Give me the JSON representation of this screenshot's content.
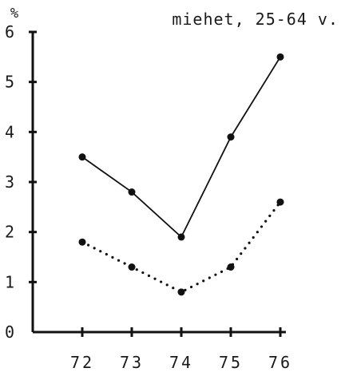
{
  "chart_data": {
    "type": "line",
    "title": "miehet, 25-64 v.",
    "ylabel": "%",
    "xlabel": "",
    "categories": [
      "72",
      "73",
      "74",
      "75",
      "76"
    ],
    "ylim": [
      0,
      6
    ],
    "yticks": [
      "0",
      "1",
      "2",
      "3",
      "4",
      "5",
      "6"
    ],
    "series": [
      {
        "values": [
          3.5,
          2.8,
          1.9,
          3.9,
          5.5
        ],
        "line_style": "solid"
      },
      {
        "values": [
          1.8,
          1.3,
          0.8,
          1.3,
          2.6
        ],
        "line_style": "dotted"
      }
    ],
    "grid": false,
    "legend": "none"
  }
}
